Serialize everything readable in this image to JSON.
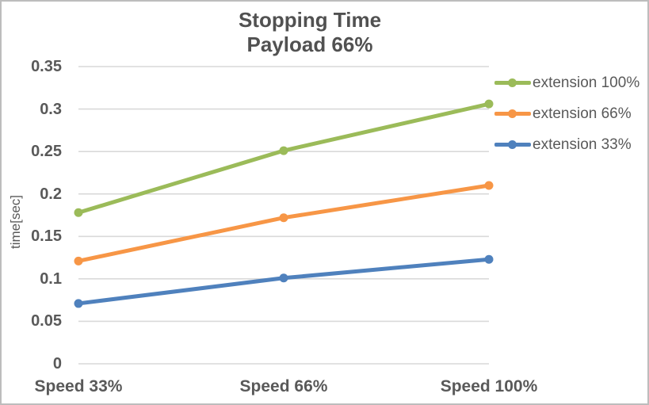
{
  "chart": {
    "title_line1": "Stopping Time",
    "title_line2": "Payload 66%",
    "ylabel": "time[sec]"
  },
  "colors": {
    "text": "#595959",
    "title_text": "#515151",
    "gridline": "#D9D9D9",
    "border": "#BDBDBD",
    "background": "#FFFFFF"
  },
  "chart_data": {
    "type": "line",
    "title": "Stopping Time",
    "subtitle": "Payload 66%",
    "xlabel": "",
    "ylabel": "time[sec]",
    "categories": [
      "Speed 33%",
      "Speed 66%",
      "Speed 100%"
    ],
    "series": [
      {
        "name": "extension 100%",
        "color": "#9BBB59",
        "values": [
          0.178,
          0.251,
          0.306
        ]
      },
      {
        "name": "extension 66%",
        "color": "#F79646",
        "values": [
          0.121,
          0.172,
          0.21
        ]
      },
      {
        "name": "extension 33%",
        "color": "#4F81BD",
        "values": [
          0.071,
          0.101,
          0.123
        ]
      }
    ],
    "ylim": [
      0,
      0.35
    ],
    "ytick_step": 0.05,
    "yticks": [
      "0",
      "0.05",
      "0.1",
      "0.15",
      "0.2",
      "0.25",
      "0.3",
      "0.35"
    ],
    "grid": true,
    "vertical_grid": false,
    "legend_position": "right",
    "marker": "circle"
  }
}
